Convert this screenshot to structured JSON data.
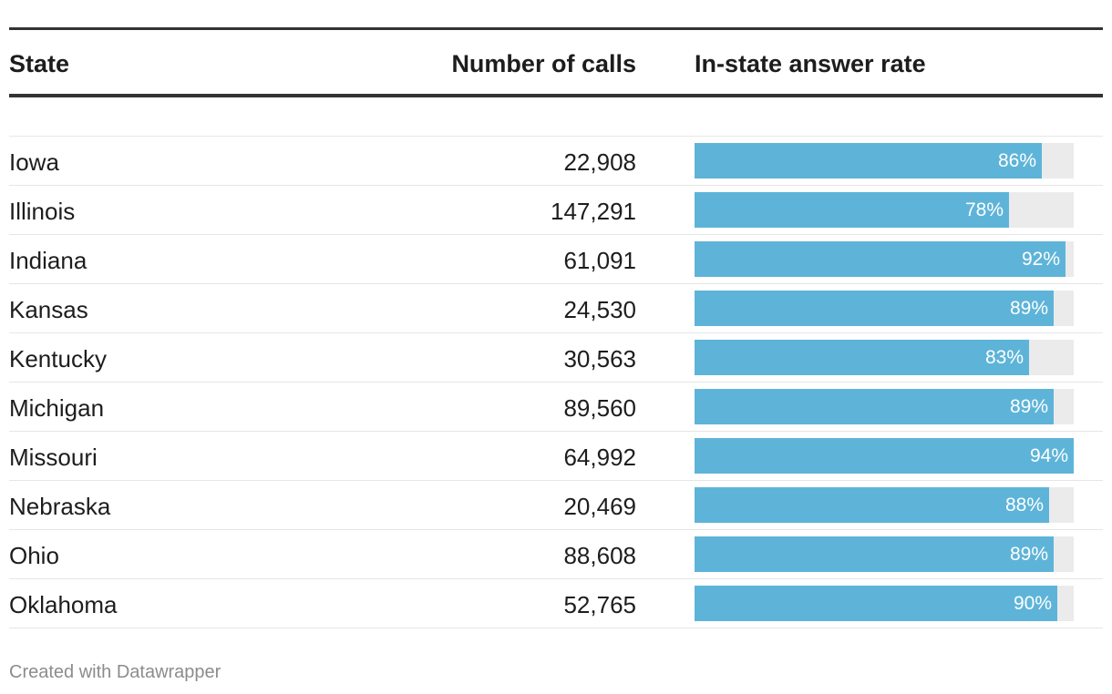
{
  "table": {
    "headers": {
      "state": "State",
      "calls": "Number of calls",
      "rate": "In-state answer rate"
    }
  },
  "chart_data": {
    "type": "table",
    "columns": [
      "State",
      "Number of calls",
      "In-state answer rate"
    ],
    "bar_max": 94,
    "bar_color": "#5eb4d8",
    "track_color": "#ebebeb",
    "rows": [
      {
        "state": "Iowa",
        "calls": "22,908",
        "rate": 86,
        "rate_label": "86%"
      },
      {
        "state": "Illinois",
        "calls": "147,291",
        "rate": 78,
        "rate_label": "78%"
      },
      {
        "state": "Indiana",
        "calls": "61,091",
        "rate": 92,
        "rate_label": "92%"
      },
      {
        "state": "Kansas",
        "calls": "24,530",
        "rate": 89,
        "rate_label": "89%"
      },
      {
        "state": "Kentucky",
        "calls": "30,563",
        "rate": 83,
        "rate_label": "83%"
      },
      {
        "state": "Michigan",
        "calls": "89,560",
        "rate": 89,
        "rate_label": "89%"
      },
      {
        "state": "Missouri",
        "calls": "64,992",
        "rate": 94,
        "rate_label": "94%"
      },
      {
        "state": "Nebraska",
        "calls": "20,469",
        "rate": 88,
        "rate_label": "88%"
      },
      {
        "state": "Ohio",
        "calls": "88,608",
        "rate": 89,
        "rate_label": "89%"
      },
      {
        "state": "Oklahoma",
        "calls": "52,765",
        "rate": 90,
        "rate_label": "90%"
      }
    ]
  },
  "footer": {
    "credit": "Created with Datawrapper"
  }
}
